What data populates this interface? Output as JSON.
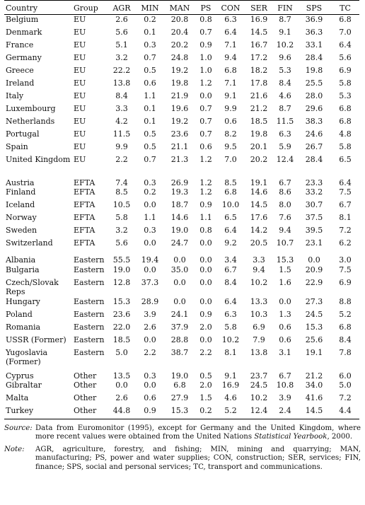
{
  "columns": [
    "Country",
    "Group",
    "AGR",
    "MIN",
    "MAN",
    "PS",
    "CON",
    "SER",
    "FIN",
    "SPS",
    "TC"
  ],
  "rows": [
    [
      "Belgium",
      "EU",
      "2.6",
      "0.2",
      "20.8",
      "0.8",
      "6.3",
      "16.9",
      "8.7",
      "36.9",
      "6.8"
    ],
    [
      "Denmark",
      "EU",
      "5.6",
      "0.1",
      "20.4",
      "0.7",
      "6.4",
      "14.5",
      "9.1",
      "36.3",
      "7.0"
    ],
    [
      "France",
      "EU",
      "5.1",
      "0.3",
      "20.2",
      "0.9",
      "7.1",
      "16.7",
      "10.2",
      "33.1",
      "6.4"
    ],
    [
      "Germany",
      "EU",
      "3.2",
      "0.7",
      "24.8",
      "1.0",
      "9.4",
      "17.2",
      "9.6",
      "28.4",
      "5.6"
    ],
    [
      "Greece",
      "EU",
      "22.2",
      "0.5",
      "19.2",
      "1.0",
      "6.8",
      "18.2",
      "5.3",
      "19.8",
      "6.9"
    ],
    [
      "Ireland",
      "EU",
      "13.8",
      "0.6",
      "19.8",
      "1.2",
      "7.1",
      "17.8",
      "8.4",
      "25.5",
      "5.8"
    ],
    [
      "Italy",
      "EU",
      "8.4",
      "1.1",
      "21.9",
      "0.0",
      "9.1",
      "21.6",
      "4.6",
      "28.0",
      "5.3"
    ],
    [
      "Luxembourg",
      "EU",
      "3.3",
      "0.1",
      "19.6",
      "0.7",
      "9.9",
      "21.2",
      "8.7",
      "29.6",
      "6.8"
    ],
    [
      "Netherlands",
      "EU",
      "4.2",
      "0.1",
      "19.2",
      "0.7",
      "0.6",
      "18.5",
      "11.5",
      "38.3",
      "6.8"
    ],
    [
      "Portugal",
      "EU",
      "11.5",
      "0.5",
      "23.6",
      "0.7",
      "8.2",
      "19.8",
      "6.3",
      "24.6",
      "4.8"
    ],
    [
      "Spain",
      "EU",
      "9.9",
      "0.5",
      "21.1",
      "0.6",
      "9.5",
      "20.1",
      "5.9",
      "26.7",
      "5.8"
    ],
    [
      "United Kingdom",
      "EU",
      "2.2",
      "0.7",
      "21.3",
      "1.2",
      "7.0",
      "20.2",
      "12.4",
      "28.4",
      "6.5"
    ],
    [
      "Austria",
      "EFTA",
      "7.4",
      "0.3",
      "26.9",
      "1.2",
      "8.5",
      "19.1",
      "6.7",
      "23.3",
      "6.4"
    ],
    [
      "Finland",
      "EFTA",
      "8.5",
      "0.2",
      "19.3",
      "1.2",
      "6.8",
      "14.6",
      "8.6",
      "33.2",
      "7.5"
    ],
    [
      "Iceland",
      "EFTA",
      "10.5",
      "0.0",
      "18.7",
      "0.9",
      "10.0",
      "14.5",
      "8.0",
      "30.7",
      "6.7"
    ],
    [
      "Norway",
      "EFTA",
      "5.8",
      "1.1",
      "14.6",
      "1.1",
      "6.5",
      "17.6",
      "7.6",
      "37.5",
      "8.1"
    ],
    [
      "Sweden",
      "EFTA",
      "3.2",
      "0.3",
      "19.0",
      "0.8",
      "6.4",
      "14.2",
      "9.4",
      "39.5",
      "7.2"
    ],
    [
      "Switzerland",
      "EFTA",
      "5.6",
      "0.0",
      "24.7",
      "0.0",
      "9.2",
      "20.5",
      "10.7",
      "23.1",
      "6.2"
    ],
    [
      "Albania",
      "Eastern",
      "55.5",
      "19.4",
      "0.0",
      "0.0",
      "3.4",
      "3.3",
      "15.3",
      "0.0",
      "3.0"
    ],
    [
      "Bulgaria",
      "Eastern",
      "19.0",
      "0.0",
      "35.0",
      "0.0",
      "6.7",
      "9.4",
      "1.5",
      "20.9",
      "7.5"
    ],
    [
      "Czech/Slovak Reps",
      "Eastern",
      "12.8",
      "37.3",
      "0.0",
      "0.0",
      "8.4",
      "10.2",
      "1.6",
      "22.9",
      "6.9"
    ],
    [
      "Hungary",
      "Eastern",
      "15.3",
      "28.9",
      "0.0",
      "0.0",
      "6.4",
      "13.3",
      "0.0",
      "27.3",
      "8.8"
    ],
    [
      "Poland",
      "Eastern",
      "23.6",
      "3.9",
      "24.1",
      "0.9",
      "6.3",
      "10.3",
      "1.3",
      "24.5",
      "5.2"
    ],
    [
      "Romania",
      "Eastern",
      "22.0",
      "2.6",
      "37.9",
      "2.0",
      "5.8",
      "6.9",
      "0.6",
      "15.3",
      "6.8"
    ],
    [
      "USSR (Former)",
      "Eastern",
      "18.5",
      "0.0",
      "28.8",
      "0.0",
      "10.2",
      "7.9",
      "0.6",
      "25.6",
      "8.4"
    ],
    [
      "Yugoslavia (Former)",
      "Eastern",
      "5.0",
      "2.2",
      "38.7",
      "2.2",
      "8.1",
      "13.8",
      "3.1",
      "19.1",
      "7.8"
    ],
    [
      "Cyprus",
      "Other",
      "13.5",
      "0.3",
      "19.0",
      "0.5",
      "9.1",
      "23.7",
      "6.7",
      "21.2",
      "6.0"
    ],
    [
      "Gibraltar",
      "Other",
      "0.0",
      "0.0",
      "6.8",
      "2.0",
      "16.9",
      "24.5",
      "10.8",
      "34.0",
      "5.0"
    ],
    [
      "Malta",
      "Other",
      "2.6",
      "0.6",
      "27.9",
      "1.5",
      "4.6",
      "10.2",
      "3.9",
      "41.6",
      "7.2"
    ],
    [
      "Turkey",
      "Other",
      "44.8",
      "0.9",
      "15.3",
      "0.2",
      "5.2",
      "12.4",
      "2.4",
      "14.5",
      "4.4"
    ]
  ],
  "notes": {
    "source_label": "Source:",
    "source_text_1": "Data from Euromonitor (1995), except for Germany and the United Kingdom, where more recent values were obtained from the United Nations ",
    "source_italic": "Statistical Yearbook",
    "source_text_2": ", 2000.",
    "note_label": "Note:",
    "note_text": "AGR, agriculture, forestry, and fishing; MIN, mining and quarrying; MAN, manufacturing; PS, power and water supplies; CON, construction; SER, services; FIN, finance; SPS, social and personal services; TC, transport and communications."
  }
}
